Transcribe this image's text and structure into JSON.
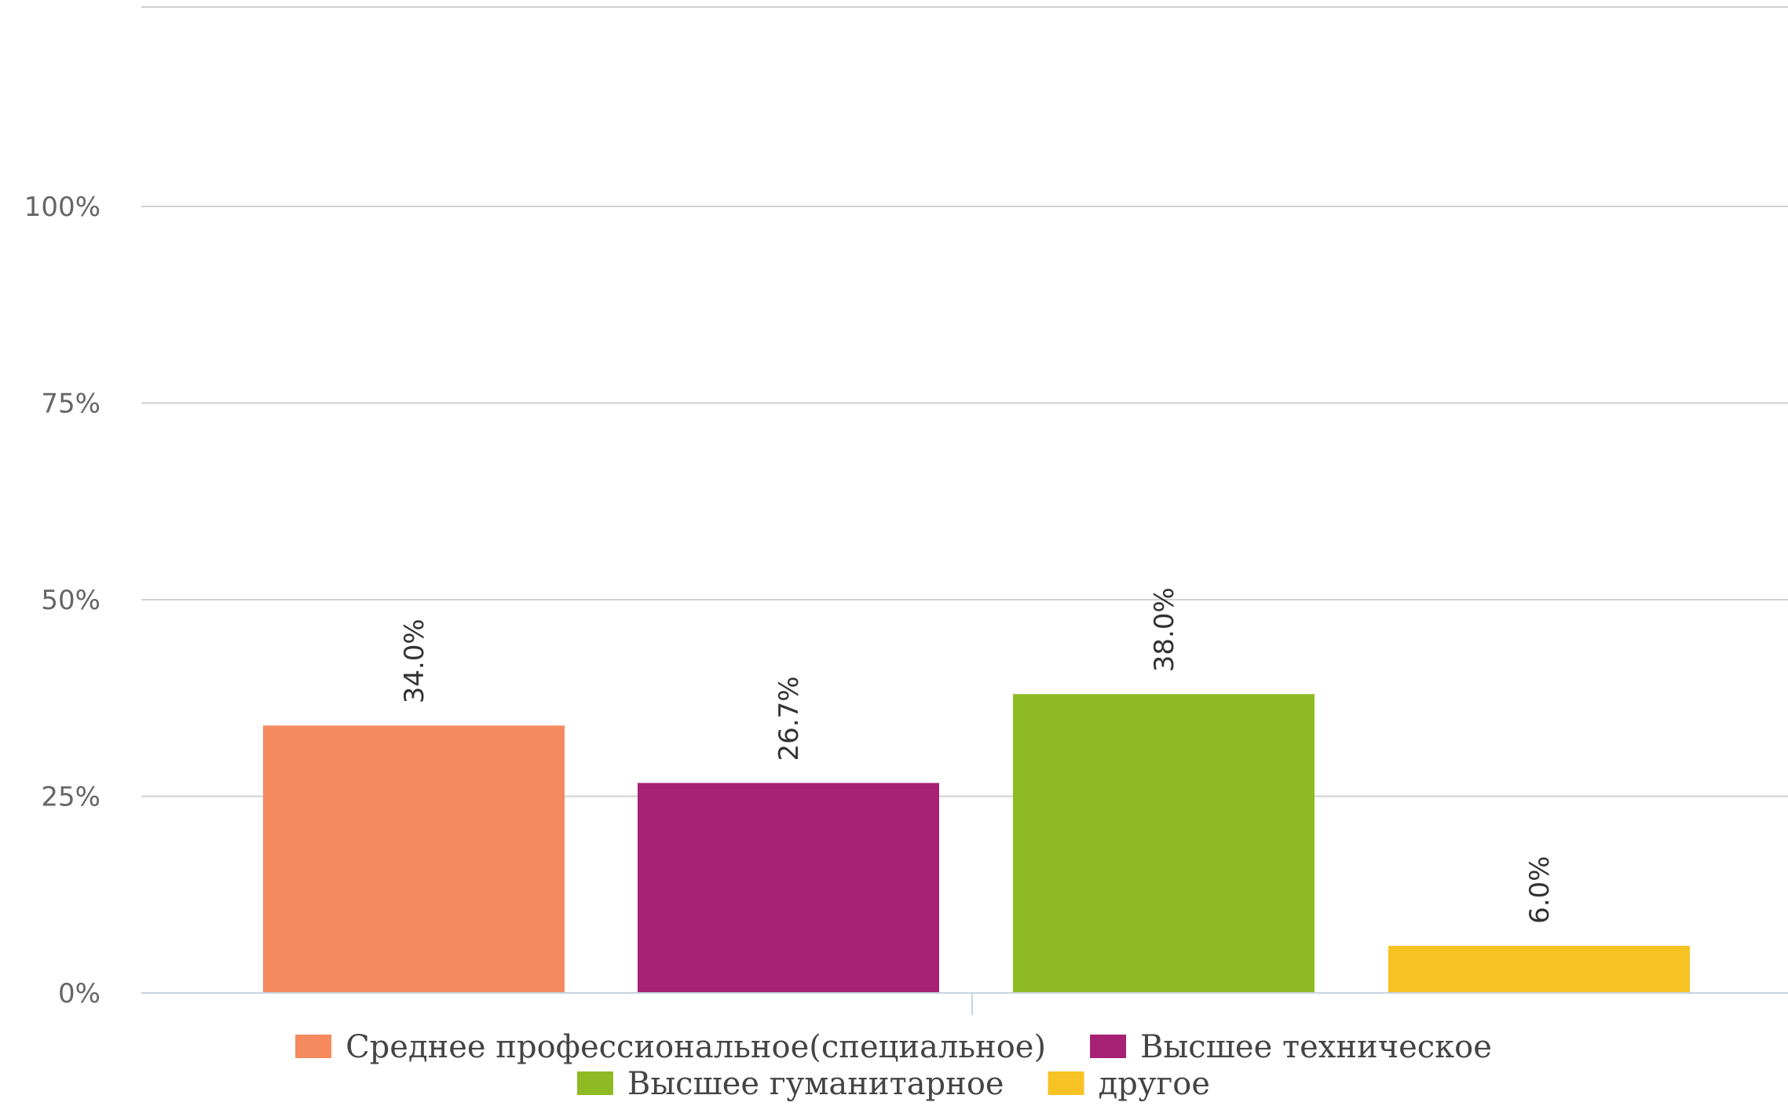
{
  "chart_data": {
    "type": "bar",
    "categories": [
      "Среднее профессиональное(специальное)",
      "Высшее техническое",
      "Высшее гуманитарное",
      "другое"
    ],
    "values": [
      34.0,
      26.7,
      38.0,
      6.0
    ],
    "value_labels": [
      "34.0%",
      "26.7%",
      "38.0%",
      "6.0%"
    ],
    "colors": [
      "#F48A5E",
      "#A62174",
      "#8EBA24",
      "#F7C224"
    ],
    "ylim": [
      0,
      100
    ],
    "yticks": [
      {
        "value": 0,
        "label": "0%"
      },
      {
        "value": 25,
        "label": "25%"
      },
      {
        "value": 50,
        "label": "50%"
      },
      {
        "value": 75,
        "label": "75%"
      },
      {
        "value": 100,
        "label": "100%"
      }
    ],
    "grid": true,
    "legend_position": "bottom",
    "legend": [
      {
        "label": "Среднее профессиональное(специальное)",
        "color": "#F48A5E"
      },
      {
        "label": "Высшее техническое",
        "color": "#A62174"
      },
      {
        "label": "Высшее гуманитарное",
        "color": "#8EBA24"
      },
      {
        "label": "другое",
        "color": "#F7C224"
      }
    ],
    "title": "",
    "xlabel": "",
    "ylabel": ""
  }
}
